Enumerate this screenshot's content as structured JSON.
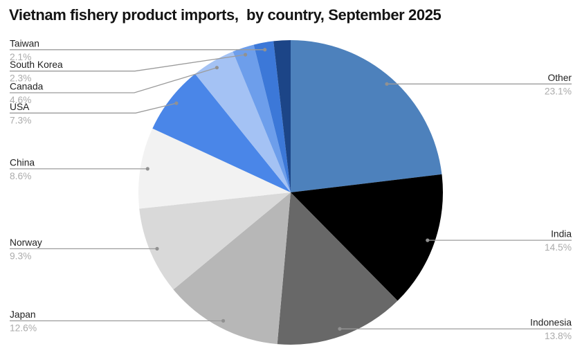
{
  "title": "Vietnam fishery product imports,  by country, September 2025",
  "chart_data": {
    "type": "pie",
    "title": "Vietnam fishery product imports, by country, September 2025",
    "unit": "%",
    "direction": "clockwise",
    "start_angle_deg": 0,
    "legend_position": "callout-labels",
    "slices": [
      {
        "label": "Other",
        "value": 23.1,
        "pct_label": "23.1%",
        "color": "#4d81bc",
        "label_side": "right",
        "labeled": true
      },
      {
        "label": "India",
        "value": 14.5,
        "pct_label": "14.5%",
        "color": "#000000",
        "label_side": "right",
        "labeled": true
      },
      {
        "label": "Indonesia",
        "value": 13.8,
        "pct_label": "13.8%",
        "color": "#686868",
        "label_side": "right",
        "labeled": true
      },
      {
        "label": "Japan",
        "value": 12.6,
        "pct_label": "12.6%",
        "color": "#b7b7b7",
        "label_side": "left",
        "labeled": true
      },
      {
        "label": "Norway",
        "value": 9.3,
        "pct_label": "9.3%",
        "color": "#d9d9d9",
        "label_side": "left",
        "labeled": true
      },
      {
        "label": "China",
        "value": 8.6,
        "pct_label": "8.6%",
        "color": "#f2f2f2",
        "label_side": "left",
        "labeled": true
      },
      {
        "label": "USA",
        "value": 7.3,
        "pct_label": "7.3%",
        "color": "#4a86e8",
        "label_side": "left",
        "labeled": true
      },
      {
        "label": "Canada",
        "value": 4.6,
        "pct_label": "4.6%",
        "color": "#a4c2f4",
        "label_side": "left",
        "labeled": true
      },
      {
        "label": "South Korea",
        "value": 2.3,
        "pct_label": "2.3%",
        "color": "#6d9eeb",
        "label_side": "left",
        "labeled": true
      },
      {
        "label": "Taiwan",
        "value": 2.1,
        "pct_label": "2.1%",
        "color": "#3c78d8",
        "label_side": "left",
        "labeled": true
      },
      {
        "label": "",
        "value": 1.8,
        "pct_label": "",
        "color": "#1c4587",
        "label_side": "none",
        "labeled": false
      }
    ],
    "styles": {
      "background": "#ffffff",
      "title_color": "#141414",
      "label_name_color": "#1f1f1f",
      "label_value_color": "#ababab",
      "leader_line_color": "#9b9b9b",
      "leader_dot_color": "#919191"
    }
  }
}
